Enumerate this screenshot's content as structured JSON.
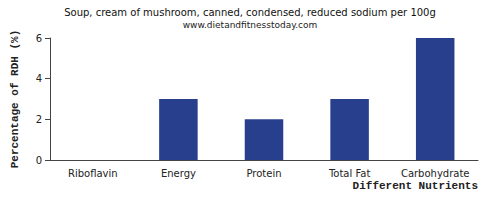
{
  "chart_data": {
    "type": "bar",
    "title": "Soup, cream of mushroom, canned, condensed, reduced sodium per 100g",
    "subtitle": "www.dietandfitnesstoday.com",
    "x_label": "Different Nutrients",
    "y_label": "Percentage of RDH (%)",
    "categories": [
      "Riboflavin",
      "Energy",
      "Protein",
      "Total Fat",
      "Carbohydrate"
    ],
    "values": [
      0,
      3,
      2,
      3,
      6
    ],
    "color": "#283f8e",
    "ylim": [
      0,
      6
    ],
    "yticks": [
      0,
      2,
      4,
      6
    ],
    "grid": false
  }
}
